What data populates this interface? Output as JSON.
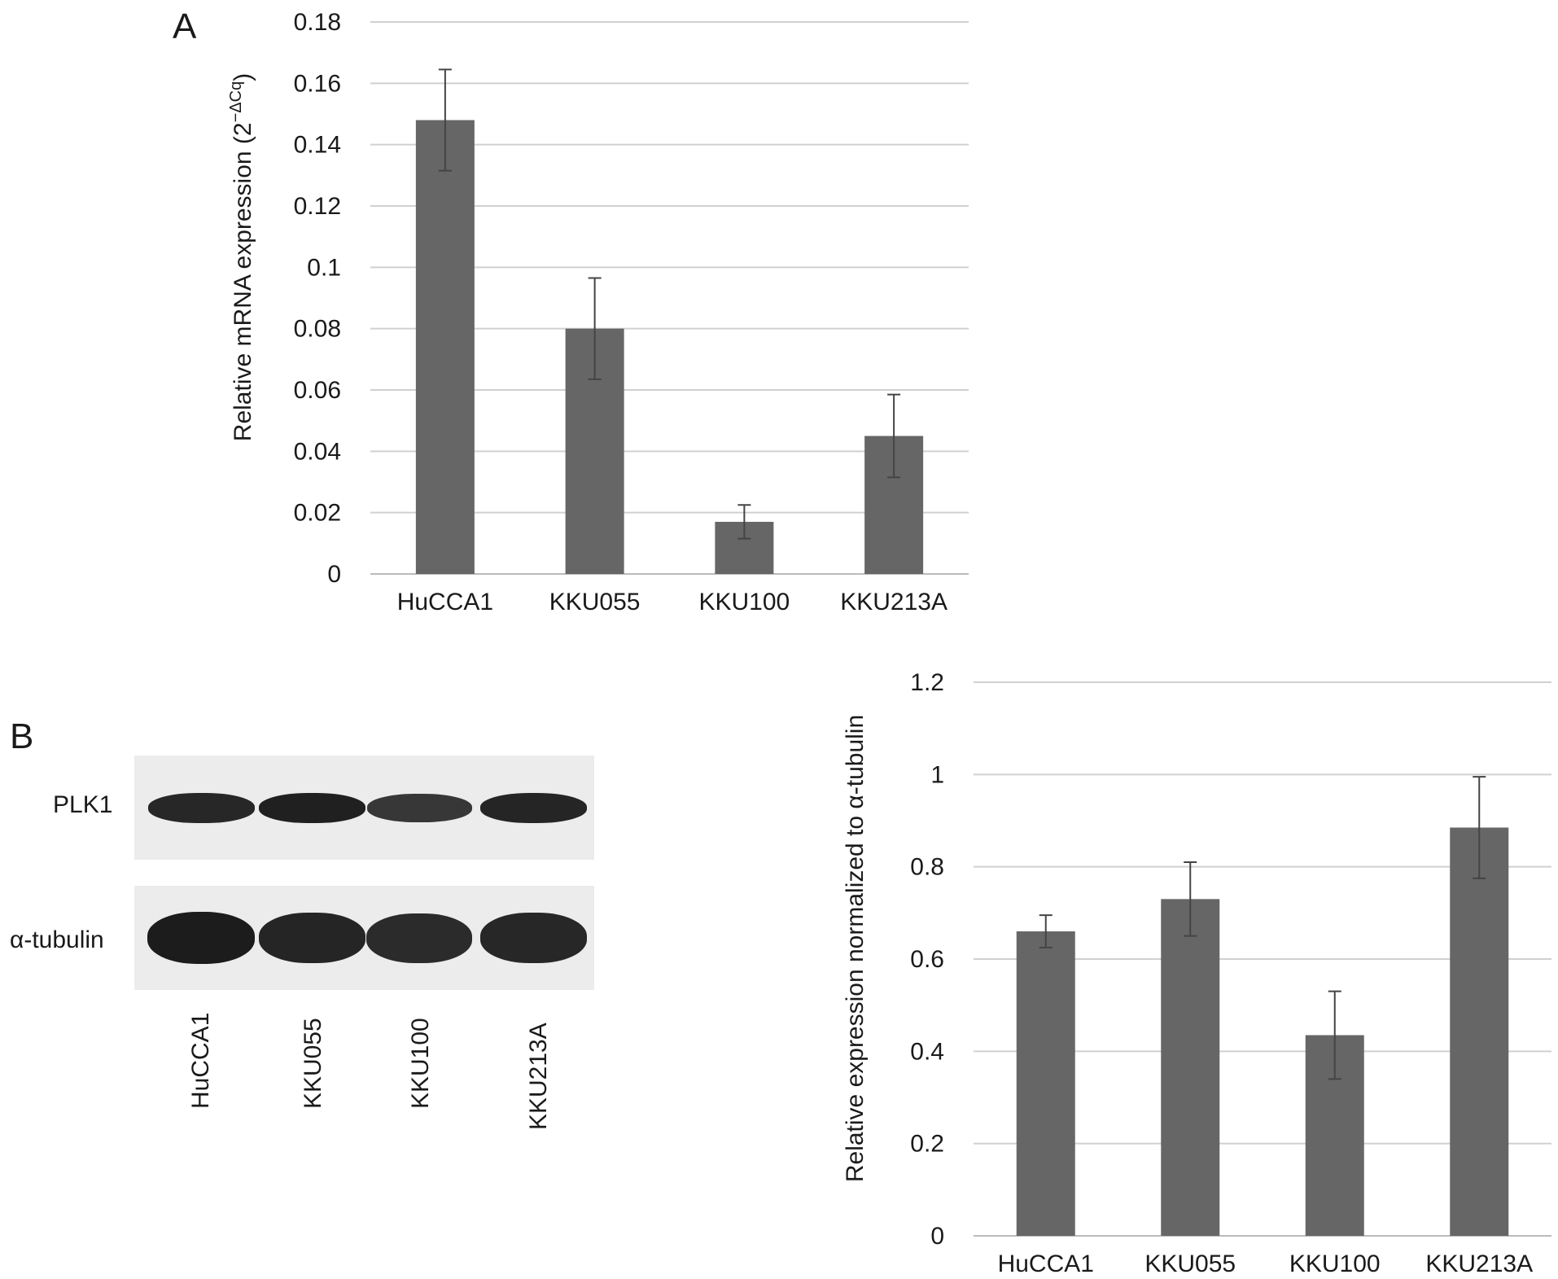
{
  "figure": {
    "panel_a_letter": "A",
    "panel_b_letter": "B"
  },
  "blot": {
    "rows": [
      {
        "label": "PLK1",
        "band_intensity": [
          0.88,
          0.95,
          0.72,
          0.92
        ]
      },
      {
        "label": "α-tubulin",
        "band_intensity": [
          1.0,
          0.9,
          0.85,
          0.88
        ]
      }
    ],
    "lanes": [
      "HuCCA1",
      "KKU055",
      "KKU100",
      "KKU213A"
    ]
  },
  "colors": {
    "bar": "#666666",
    "grid": "#d0d0d0",
    "axis": "#bbbbbb",
    "text": "#1a1a1a",
    "band": "#1c1c1c"
  },
  "chart_data": [
    {
      "panel": "A",
      "type": "bar",
      "categories": [
        "HuCCA1",
        "KKU055",
        "KKU100",
        "KKU213A"
      ],
      "values": [
        0.148,
        0.08,
        0.017,
        0.045
      ],
      "errors": [
        0.0165,
        0.0165,
        0.0055,
        0.0135
      ],
      "title": "",
      "xlabel": "",
      "ylabel": "Relative mRNA expression (2",
      "ylabel_superscript": "−ΔCq",
      "ylabel_suffix": ")",
      "ylim": [
        0,
        0.18
      ],
      "yticks": [
        0,
        0.02,
        0.04,
        0.06,
        0.08,
        0.1,
        0.12,
        0.14,
        0.16,
        0.18
      ],
      "ytick_labels": [
        "0",
        "0.02",
        "0.04",
        "0.06",
        "0.08",
        "0.1",
        "0.12",
        "0.14",
        "0.16",
        "0.18"
      ],
      "grid": true,
      "legend": "none"
    },
    {
      "panel": "B",
      "type": "bar",
      "categories": [
        "HuCCA1",
        "KKU055",
        "KKU100",
        "KKU213A"
      ],
      "values": [
        0.66,
        0.73,
        0.435,
        0.885
      ],
      "errors": [
        0.035,
        0.08,
        0.095,
        0.11
      ],
      "title": "",
      "xlabel": "",
      "ylabel": "Relative expression normalized to α-tubulin",
      "ylim": [
        0,
        1.2
      ],
      "yticks": [
        0,
        0.2,
        0.4,
        0.6,
        0.8,
        1,
        1.2
      ],
      "ytick_labels": [
        "0",
        "0.2",
        "0.4",
        "0.6",
        "0.8",
        "1",
        "1.2"
      ],
      "grid": true,
      "legend": "none"
    }
  ]
}
